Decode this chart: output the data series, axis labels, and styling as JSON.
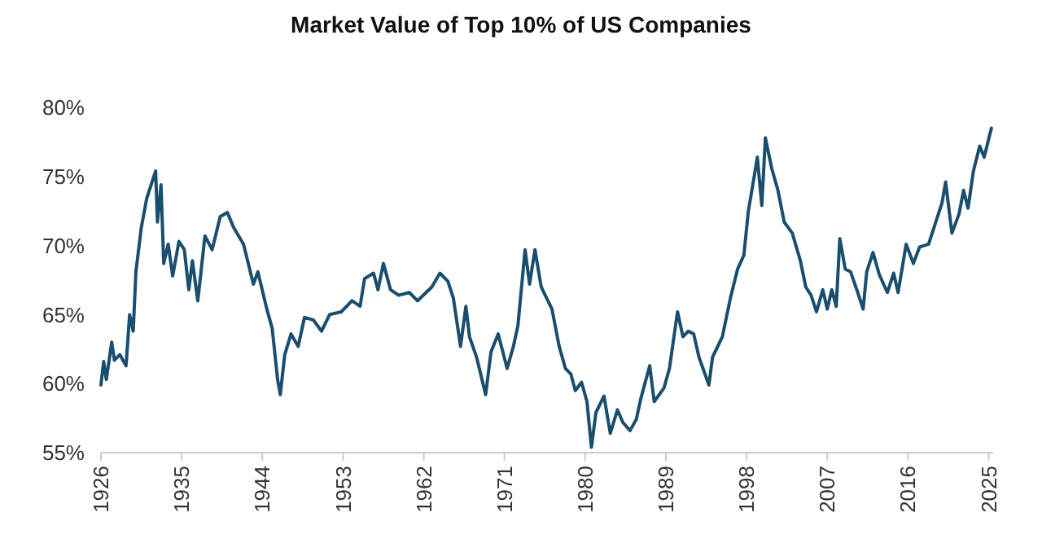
{
  "chart_data": {
    "type": "line",
    "title": "Market Value of Top 10% of US Companies",
    "xlim": [
      1926,
      2025.5
    ],
    "xticks": [
      1926,
      1935,
      1944,
      1953,
      1962,
      1971,
      1980,
      1989,
      1998,
      2007,
      2016,
      2025
    ],
    "ylim": [
      55,
      80
    ],
    "yticks": [
      {
        "value": 55,
        "label": "55%"
      },
      {
        "value": 60,
        "label": "60%"
      },
      {
        "value": 65,
        "label": "65%"
      },
      {
        "value": 70,
        "label": "70%"
      },
      {
        "value": 75,
        "label": "75%"
      },
      {
        "value": 80,
        "label": "80%"
      }
    ],
    "grid": false,
    "marker": "none",
    "line_style": "solid",
    "series": [
      {
        "color": "#1a4e6e",
        "x": [
          1926.0,
          1926.3,
          1926.6,
          1927.2,
          1927.5,
          1928.1,
          1928.8,
          1929.2,
          1929.6,
          1929.9,
          1930.5,
          1931.1,
          1931.8,
          1932.1,
          1932.3,
          1932.7,
          1933.0,
          1933.5,
          1934.0,
          1934.7,
          1935.3,
          1935.8,
          1936.2,
          1936.8,
          1937.6,
          1938.4,
          1939.3,
          1940.1,
          1940.8,
          1941.9,
          1943.0,
          1943.5,
          1944.5,
          1945.1,
          1945.7,
          1946.0,
          1946.5,
          1947.2,
          1948.0,
          1948.7,
          1949.7,
          1950.6,
          1951.5,
          1952.8,
          1954.0,
          1954.9,
          1955.4,
          1956.4,
          1956.9,
          1957.5,
          1958.3,
          1959.2,
          1960.4,
          1961.3,
          1962.9,
          1963.8,
          1964.7,
          1965.3,
          1966.1,
          1966.7,
          1967.1,
          1967.9,
          1968.9,
          1969.5,
          1970.3,
          1971.3,
          1972.0,
          1972.5,
          1973.3,
          1973.8,
          1974.4,
          1975.1,
          1975.7,
          1976.3,
          1977.1,
          1977.8,
          1978.4,
          1978.9,
          1979.6,
          1980.2,
          1980.7,
          1981.2,
          1982.1,
          1982.8,
          1983.6,
          1984.2,
          1985.0,
          1985.7,
          1986.2,
          1987.2,
          1987.7,
          1988.8,
          1989.4,
          1990.3,
          1990.9,
          1991.5,
          1992.1,
          1992.7,
          1993.8,
          1994.2,
          1995.3,
          1996.2,
          1997.0,
          1997.7,
          1998.2,
          1998.8,
          1999.2,
          1999.7,
          2000.1,
          2000.8,
          2001.5,
          2002.2,
          2003.1,
          2004.0,
          2004.6,
          2005.2,
          2005.8,
          2006.5,
          2007.0,
          2007.5,
          2008.0,
          2008.4,
          2009.0,
          2009.6,
          2010.4,
          2011.0,
          2011.4,
          2012.1,
          2012.8,
          2013.7,
          2014.4,
          2014.9,
          2015.8,
          2016.6,
          2017.3,
          2018.3,
          2018.9,
          2019.8,
          2020.2,
          2020.9,
          2021.7,
          2022.2,
          2022.7,
          2023.3,
          2024.0,
          2024.5,
          2025.3
        ],
        "values": [
          59.9,
          61.6,
          60.3,
          63.0,
          61.7,
          62.1,
          61.3,
          65.0,
          63.8,
          68.1,
          71.3,
          73.4,
          74.8,
          75.4,
          71.7,
          74.4,
          68.7,
          70.1,
          67.8,
          70.3,
          69.7,
          66.8,
          68.9,
          66.0,
          70.7,
          69.7,
          72.1,
          72.4,
          71.3,
          70.1,
          67.2,
          68.1,
          65.4,
          64.0,
          60.3,
          59.2,
          62.1,
          63.6,
          62.7,
          64.8,
          64.6,
          63.8,
          65.0,
          65.2,
          66.0,
          65.6,
          67.6,
          68.0,
          66.8,
          68.7,
          66.8,
          66.4,
          66.6,
          66.0,
          67.0,
          68.0,
          67.4,
          66.2,
          62.7,
          65.6,
          63.4,
          61.9,
          59.2,
          62.3,
          63.6,
          61.1,
          62.7,
          64.2,
          69.7,
          67.2,
          69.7,
          67.0,
          66.2,
          65.4,
          62.7,
          61.1,
          60.7,
          59.5,
          60.1,
          58.7,
          55.4,
          57.9,
          59.1,
          56.4,
          58.1,
          57.2,
          56.6,
          57.4,
          58.9,
          61.3,
          58.7,
          59.7,
          61.1,
          65.2,
          63.4,
          63.8,
          63.6,
          61.9,
          59.9,
          61.9,
          63.4,
          66.2,
          68.3,
          69.3,
          72.5,
          74.8,
          76.4,
          72.9,
          77.8,
          75.6,
          74.0,
          71.7,
          70.9,
          68.9,
          67.0,
          66.4,
          65.2,
          66.8,
          65.4,
          66.8,
          65.6,
          70.5,
          68.3,
          68.1,
          66.6,
          65.4,
          68.1,
          69.5,
          67.9,
          66.6,
          68.0,
          66.6,
          70.1,
          68.7,
          69.9,
          70.1,
          71.3,
          73.1,
          74.6,
          70.9,
          72.3,
          74.0,
          72.7,
          75.4,
          77.2,
          76.4,
          78.5
        ]
      }
    ]
  }
}
